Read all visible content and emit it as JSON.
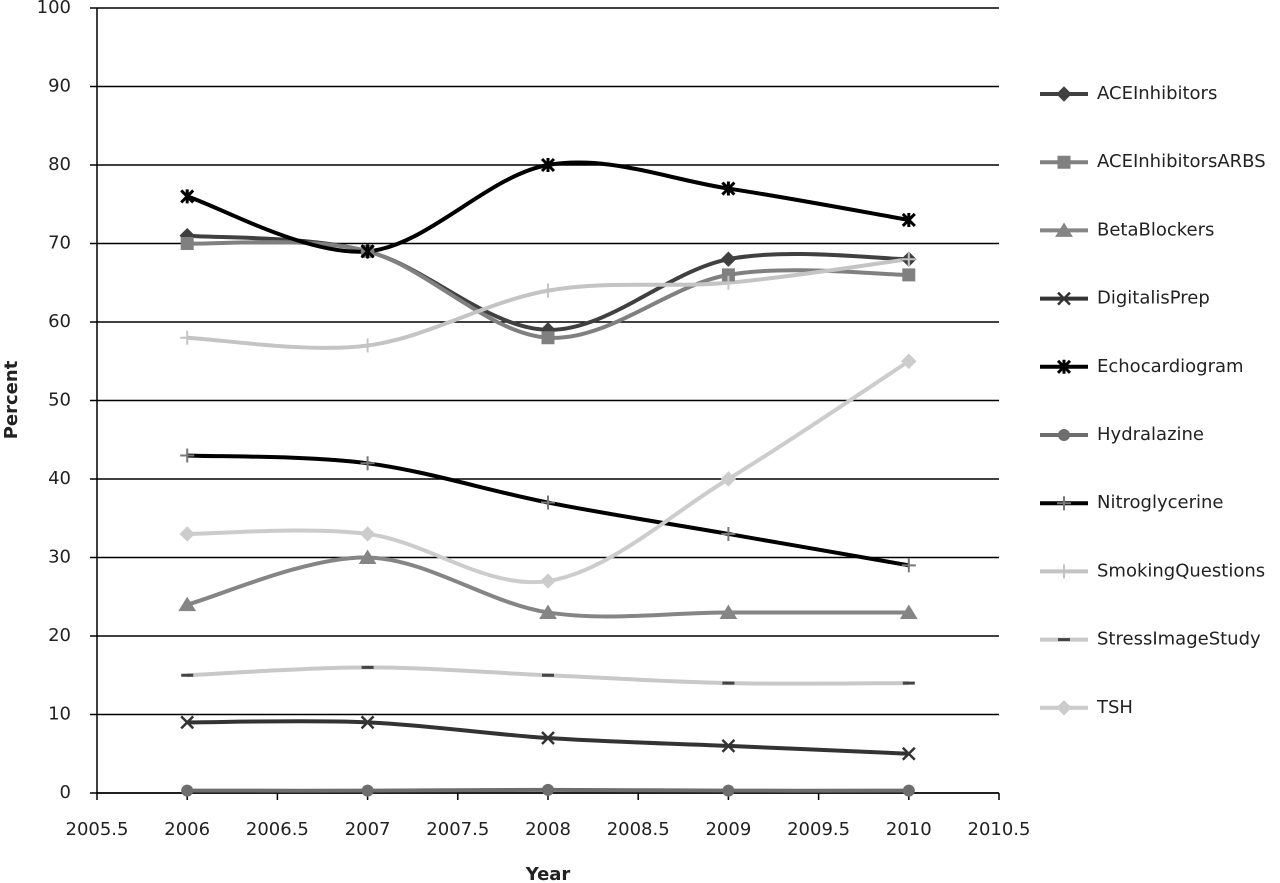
{
  "chart_data": {
    "type": "line",
    "x_label": "Year",
    "y_label": "Percent",
    "x": [
      2006,
      2007,
      2008,
      2009,
      2010
    ],
    "xlim": [
      2005.5,
      2010.5
    ],
    "xticks": [
      2005.5,
      2006,
      2006.5,
      2007,
      2007.5,
      2008,
      2008.5,
      2009,
      2009.5,
      2010,
      2010.5
    ],
    "ylim": [
      0,
      100
    ],
    "yticks": [
      0,
      10,
      20,
      30,
      40,
      50,
      60,
      70,
      80,
      90,
      100
    ],
    "grid": true,
    "smooth": true,
    "legend": "right",
    "series": [
      {
        "name": "ACEInhibitors",
        "color": "#404040",
        "marker": "diamond",
        "values": [
          71,
          69,
          59,
          68,
          68
        ]
      },
      {
        "name": "ACEInhibitorsARBS",
        "color": "#808080",
        "marker": "square",
        "values": [
          70,
          69,
          58,
          66,
          66
        ]
      },
      {
        "name": "BetaBlockers",
        "color": "#858585",
        "marker": "triangle",
        "values": [
          24,
          30,
          23,
          23,
          23
        ]
      },
      {
        "name": "DigitalisPrep",
        "color": "#333333",
        "marker": "x",
        "values": [
          9,
          9,
          7,
          6,
          5
        ]
      },
      {
        "name": "Echocardiogram",
        "color": "#000000",
        "marker": "star",
        "values": [
          76,
          69,
          80,
          77,
          73
        ]
      },
      {
        "name": "Hydralazine",
        "color": "#6e6e6e",
        "marker": "circle",
        "values": [
          0.3,
          0.3,
          0.4,
          0.3,
          0.3
        ]
      },
      {
        "name": "Nitroglycerine",
        "color": "#000000",
        "marker_color": "#777777",
        "marker": "plus",
        "values": [
          43,
          42,
          37,
          33,
          29
        ]
      },
      {
        "name": "SmokingQuestions",
        "color": "#c4c4c4",
        "marker": "plus",
        "values": [
          58,
          57,
          64,
          65,
          68
        ]
      },
      {
        "name": "StressImageStudy",
        "color": "#c8c8c8",
        "marker_color": "#444444",
        "marker": "dash",
        "values": [
          15,
          16,
          15,
          14,
          14
        ]
      },
      {
        "name": "TSH",
        "color": "#cccccc",
        "marker": "diamond",
        "values": [
          33,
          33,
          27,
          40,
          55
        ]
      }
    ]
  }
}
